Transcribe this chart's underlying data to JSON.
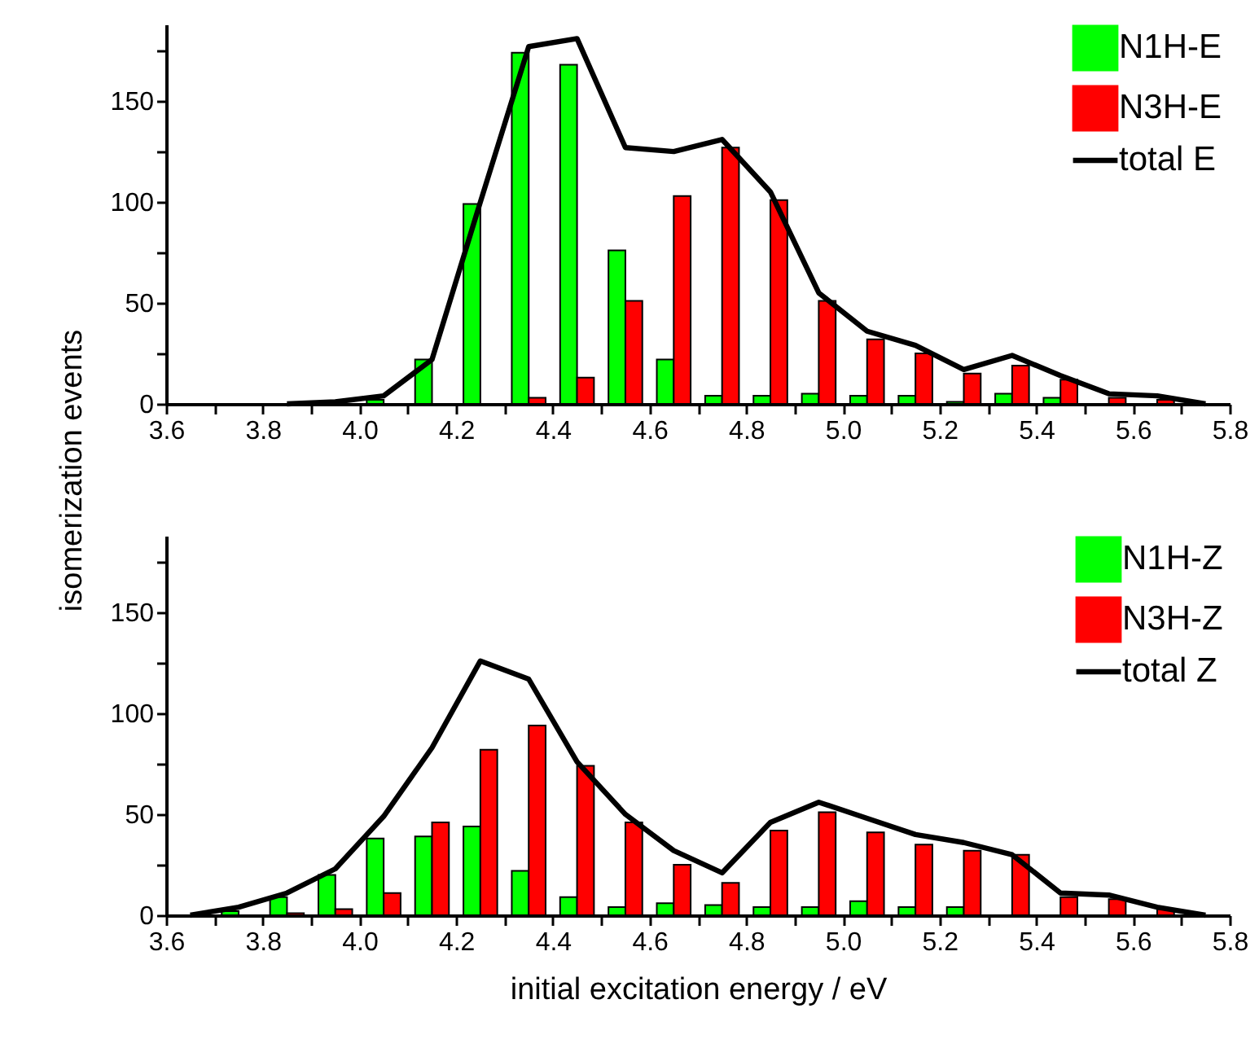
{
  "chart_data": [
    {
      "type": "bar",
      "ylabel": "isomerization events",
      "x": [
        3.85,
        3.95,
        4.05,
        4.15,
        4.25,
        4.35,
        4.45,
        4.55,
        4.65,
        4.75,
        4.85,
        4.95,
        5.05,
        5.15,
        5.25,
        5.35,
        5.45,
        5.55,
        5.65,
        5.75
      ],
      "series": [
        {
          "name": "N1H-E",
          "color": "#00ff00",
          "values": [
            null,
            null,
            2,
            22,
            99,
            174,
            168,
            76,
            22,
            4,
            4,
            5,
            4,
            4,
            1,
            5,
            3,
            null,
            null,
            null
          ]
        },
        {
          "name": "N3H-E",
          "color": "#ff0000",
          "values": [
            null,
            null,
            null,
            null,
            null,
            3,
            13,
            51,
            103,
            127,
            101,
            51,
            32,
            25,
            15,
            19,
            12,
            3,
            2,
            null
          ]
        },
        {
          "name": "total E",
          "type": "line",
          "color": "#000000",
          "values": [
            0,
            1,
            4,
            22,
            100,
            177,
            181,
            127,
            125,
            131,
            105,
            55,
            36,
            29,
            17,
            24,
            14,
            5,
            4,
            0
          ]
        }
      ],
      "xlim": [
        3.6,
        5.8
      ],
      "ylim": [
        0,
        188
      ],
      "xticks": [
        3.6,
        {
          "value": 3.7,
          "label": null
        },
        3.8,
        {
          "value": 3.9,
          "label": null
        },
        {
          "value": 4,
          "label": "4.0"
        },
        {
          "value": 4.1,
          "label": null
        },
        4.2,
        {
          "value": 4.3,
          "label": null
        },
        4.4,
        {
          "value": 4.5,
          "label": null
        },
        4.6,
        {
          "value": 4.7,
          "label": null
        },
        4.8,
        {
          "value": 4.9,
          "label": null
        },
        {
          "value": 5,
          "label": "5.0"
        },
        {
          "value": 5.1,
          "label": null
        },
        5.2,
        {
          "value": 5.3,
          "label": null
        },
        5.4,
        {
          "value": 5.5,
          "label": null
        },
        5.6,
        {
          "value": 5.7,
          "label": null
        },
        5.8
      ],
      "yticks": [
        0,
        {
          "value": 25,
          "label": null
        },
        50,
        {
          "value": 75,
          "label": null
        },
        100,
        {
          "value": 125,
          "label": null
        },
        150,
        {
          "value": 175,
          "label": null
        }
      ],
      "legend": "top right",
      "grid": false,
      "line_style": "solid",
      "marker": "none"
    },
    {
      "type": "bar",
      "xlabel": "initial excitation energy / eV",
      "x": [
        3.65,
        3.75,
        3.85,
        3.95,
        4.05,
        4.15,
        4.25,
        4.35,
        4.45,
        4.55,
        4.65,
        4.75,
        4.85,
        4.95,
        5.05,
        5.15,
        5.25,
        5.35,
        5.45,
        5.55,
        5.65,
        5.75
      ],
      "series": [
        {
          "name": "N1H-Z",
          "color": "#00ff00",
          "values": [
            null,
            2,
            9,
            20,
            38,
            39,
            44,
            22,
            9,
            4,
            6,
            5,
            4,
            4,
            7,
            4,
            4,
            null,
            null,
            null,
            null,
            null
          ]
        },
        {
          "name": "N3H-Z",
          "color": "#ff0000",
          "values": [
            null,
            null,
            1,
            3,
            11,
            46,
            82,
            94,
            74,
            46,
            25,
            16,
            42,
            51,
            41,
            35,
            32,
            30,
            9,
            8,
            3,
            null
          ]
        },
        {
          "name": "total Z",
          "type": "line",
          "color": "#000000",
          "values": [
            0,
            4,
            11,
            23,
            49,
            83,
            126,
            117,
            76,
            50,
            32,
            21,
            46,
            56,
            48,
            40,
            36,
            30,
            11,
            10,
            4,
            0
          ]
        }
      ],
      "xlim": [
        3.6,
        5.8
      ],
      "ylim": [
        0,
        188
      ],
      "xticks": [
        3.6,
        {
          "value": 3.7,
          "label": null
        },
        3.8,
        {
          "value": 3.9,
          "label": null
        },
        {
          "value": 4,
          "label": "4.0"
        },
        {
          "value": 4.1,
          "label": null
        },
        4.2,
        {
          "value": 4.3,
          "label": null
        },
        4.4,
        {
          "value": 4.5,
          "label": null
        },
        4.6,
        {
          "value": 4.7,
          "label": null
        },
        4.8,
        {
          "value": 4.9,
          "label": null
        },
        {
          "value": 5,
          "label": "5.0"
        },
        {
          "value": 5.1,
          "label": null
        },
        5.2,
        {
          "value": 5.3,
          "label": null
        },
        5.4,
        {
          "value": 5.5,
          "label": null
        },
        5.6,
        {
          "value": 5.7,
          "label": null
        },
        5.8
      ],
      "yticks": [
        0,
        {
          "value": 25,
          "label": null
        },
        50,
        {
          "value": 75,
          "label": null
        },
        100,
        {
          "value": 125,
          "label": null
        },
        150,
        {
          "value": 175,
          "label": null
        }
      ],
      "legend": "top right",
      "grid": false,
      "line_style": "solid",
      "marker": "none"
    }
  ]
}
